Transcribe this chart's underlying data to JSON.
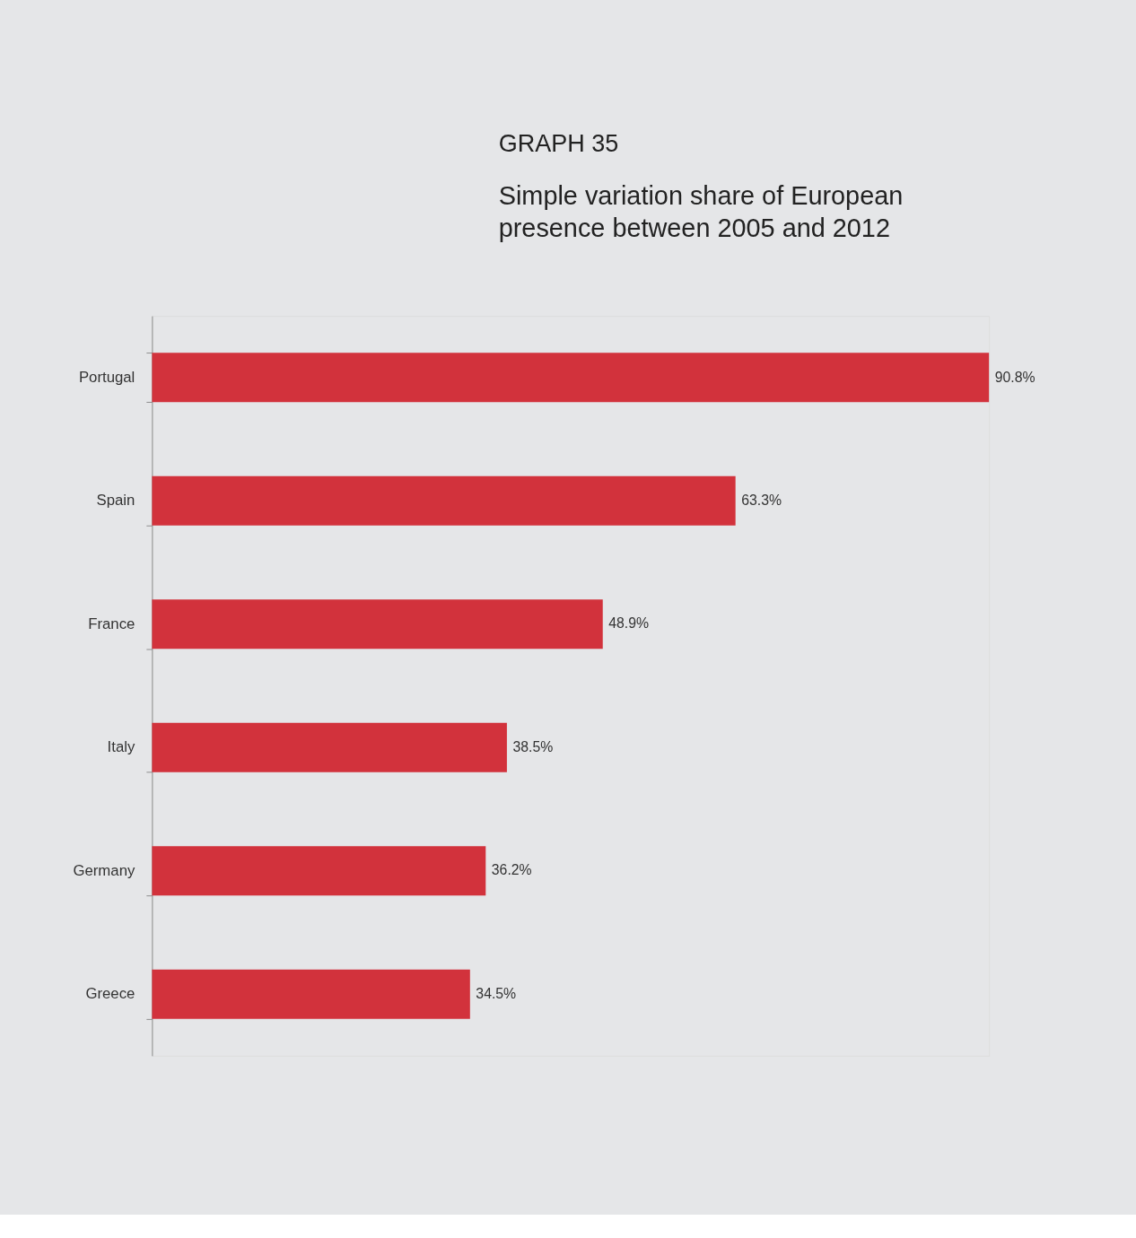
{
  "chart_data": {
    "type": "bar",
    "orientation": "horizontal",
    "title": "GRAPH 35",
    "subtitle": "Simple variation share of European presence between 2005 and 2012",
    "categories": [
      "Portugal",
      "Spain",
      "France",
      "Italy",
      "Germany",
      "Greece"
    ],
    "values": [
      90.8,
      63.3,
      48.9,
      38.5,
      36.2,
      34.5
    ],
    "value_labels": [
      "90.8%",
      "63.3%",
      "48.9%",
      "38.5%",
      "36.2%",
      "34.5%"
    ],
    "color": "#d2323c",
    "grid": false
  }
}
